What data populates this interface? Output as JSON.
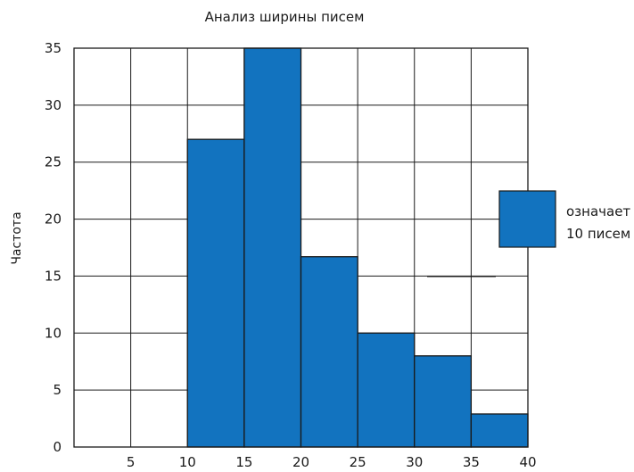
{
  "chart_data": {
    "type": "bar",
    "title": "Анализ ширины писем",
    "ylabel": "Частота",
    "xlabel": "",
    "x_ticks": [
      "5",
      "10",
      "15",
      "20",
      "25",
      "30",
      "35",
      "40"
    ],
    "y_ticks": [
      "0",
      "5",
      "10",
      "15",
      "20",
      "25",
      "30",
      "35"
    ],
    "xlim": [
      0,
      40
    ],
    "ylim": [
      0,
      35
    ],
    "grid": true,
    "bar_color": "#1273bf",
    "bins": [
      {
        "start": 10,
        "end": 15,
        "value": 27
      },
      {
        "start": 15,
        "end": 20,
        "value": 35
      },
      {
        "start": 20,
        "end": 25,
        "value": 16.7
      },
      {
        "start": 25,
        "end": 30,
        "value": 10
      },
      {
        "start": 30,
        "end": 35,
        "value": 8
      },
      {
        "start": 35,
        "end": 40,
        "value": 2.9
      }
    ],
    "legend": {
      "placement": "right",
      "line1": "означает",
      "line2": "10 писем"
    }
  }
}
